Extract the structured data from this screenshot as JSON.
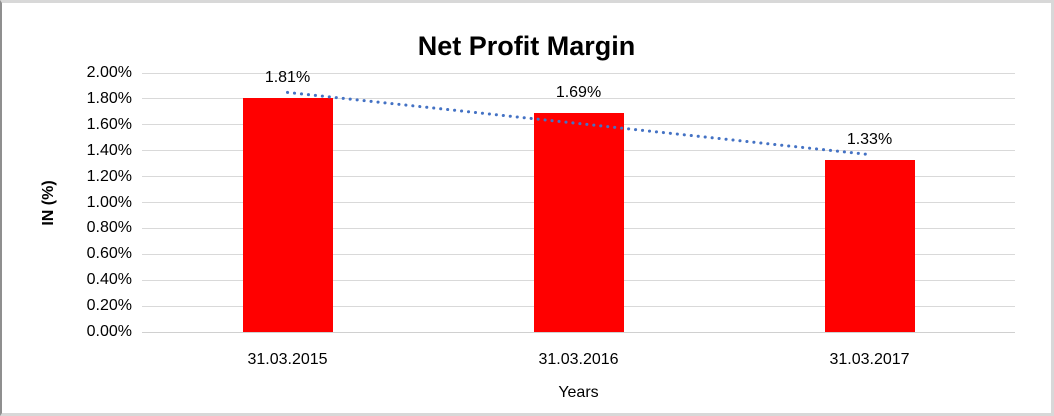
{
  "chart_data": {
    "type": "bar",
    "title": "Net Profit Margin",
    "xlabel": "Years",
    "ylabel": "IN (%)",
    "categories": [
      "31.03.2015",
      "31.03.2016",
      "31.03.2017"
    ],
    "values": [
      1.81,
      1.69,
      1.33
    ],
    "data_labels": [
      "1.81%",
      "1.69%",
      "1.33%"
    ],
    "ylim": [
      0,
      2
    ],
    "ytick_values": [
      0,
      0.2,
      0.4,
      0.6,
      0.8,
      1.0,
      1.2,
      1.4,
      1.6,
      1.8,
      2.0
    ],
    "ytick_labels": [
      "0.00%",
      "0.20%",
      "0.40%",
      "0.60%",
      "0.80%",
      "1.00%",
      "1.20%",
      "1.40%",
      "1.60%",
      "1.80%",
      "2.00%"
    ],
    "grid": true,
    "legend": "none",
    "bar_color": "#FF0000",
    "gridline_color": "#D9D9D9",
    "axis_line_color": "#D0D0D0",
    "trendline": {
      "type": "linear",
      "style": "dotted",
      "color": "#4472C4",
      "endpoints": [
        {
          "category_index": 0,
          "value": 1.85
        },
        {
          "category_index": 2,
          "value": 1.37
        }
      ]
    }
  }
}
